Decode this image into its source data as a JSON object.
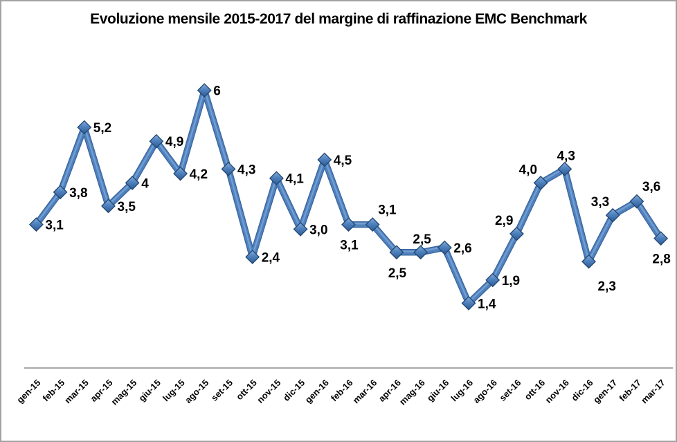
{
  "chart_data": {
    "type": "line",
    "title": "Evoluzione mensile 2015-2017 del margine di raffinazione EMC Benchmark",
    "categories": [
      "gen-15",
      "feb-15",
      "mar-15",
      "apr-15",
      "mag-15",
      "giu-15",
      "lug-15",
      "ago-15",
      "set-15",
      "ott-15",
      "nov-15",
      "dic-15",
      "gen-16",
      "feb-16",
      "mar-16",
      "apr-16",
      "mag-16",
      "giu-16",
      "lug-16",
      "ago-16",
      "set-16",
      "ott-16",
      "nov-16",
      "dic-16",
      "gen-17",
      "feb-17",
      "mar-17"
    ],
    "series": [
      {
        "values": [
          3.1,
          3.8,
          5.2,
          3.5,
          4,
          4.9,
          4.2,
          6,
          4.3,
          2.4,
          4.1,
          3.0,
          4.5,
          3.1,
          3.1,
          2.5,
          2.5,
          2.6,
          1.4,
          1.9,
          2.9,
          4.0,
          4.3,
          2.3,
          3.3,
          3.6,
          2.8
        ],
        "labels": [
          "3,1",
          "3,8",
          "5,2",
          "3,5",
          "4",
          "4,9",
          "4,2",
          "6",
          "4,3",
          "2,4",
          "4,1",
          "3,0",
          "4,5",
          "3,1",
          "3,1",
          "2,5",
          "2,5",
          "2,6",
          "1,4",
          "1,9",
          "2,9",
          "4,0",
          "4,3",
          "2,3",
          "3,3",
          "3,6",
          "2,8"
        ],
        "label_positions": [
          "right",
          "right",
          "right",
          "right",
          "right",
          "right",
          "right",
          "right",
          "right",
          "right",
          "right",
          "right",
          "right",
          "below",
          "above-right",
          "below",
          "above",
          "right",
          "right",
          "right",
          "above-left",
          "above-left",
          "above",
          "below-right",
          "above-left",
          "above-right",
          "below"
        ]
      }
    ],
    "xlabel": "",
    "ylabel": "",
    "ylim": [
      0,
      7
    ],
    "y_axis_visible": false,
    "gridlines": false,
    "legend": "none",
    "marker_shape": "diamond",
    "colors": {
      "line": "#4f81bd",
      "line_dark_edge": "#3a649e",
      "line_highlight": "#7fa8da",
      "marker_top": "#85aedd",
      "marker_mid": "#4f81bd",
      "marker_bottom": "#2d5c98",
      "marker_border": "#20456f",
      "axis_line": "#8a8a8a",
      "text": "#000000",
      "frame_border": "#a2a2a2",
      "background": "#ffffff"
    }
  }
}
